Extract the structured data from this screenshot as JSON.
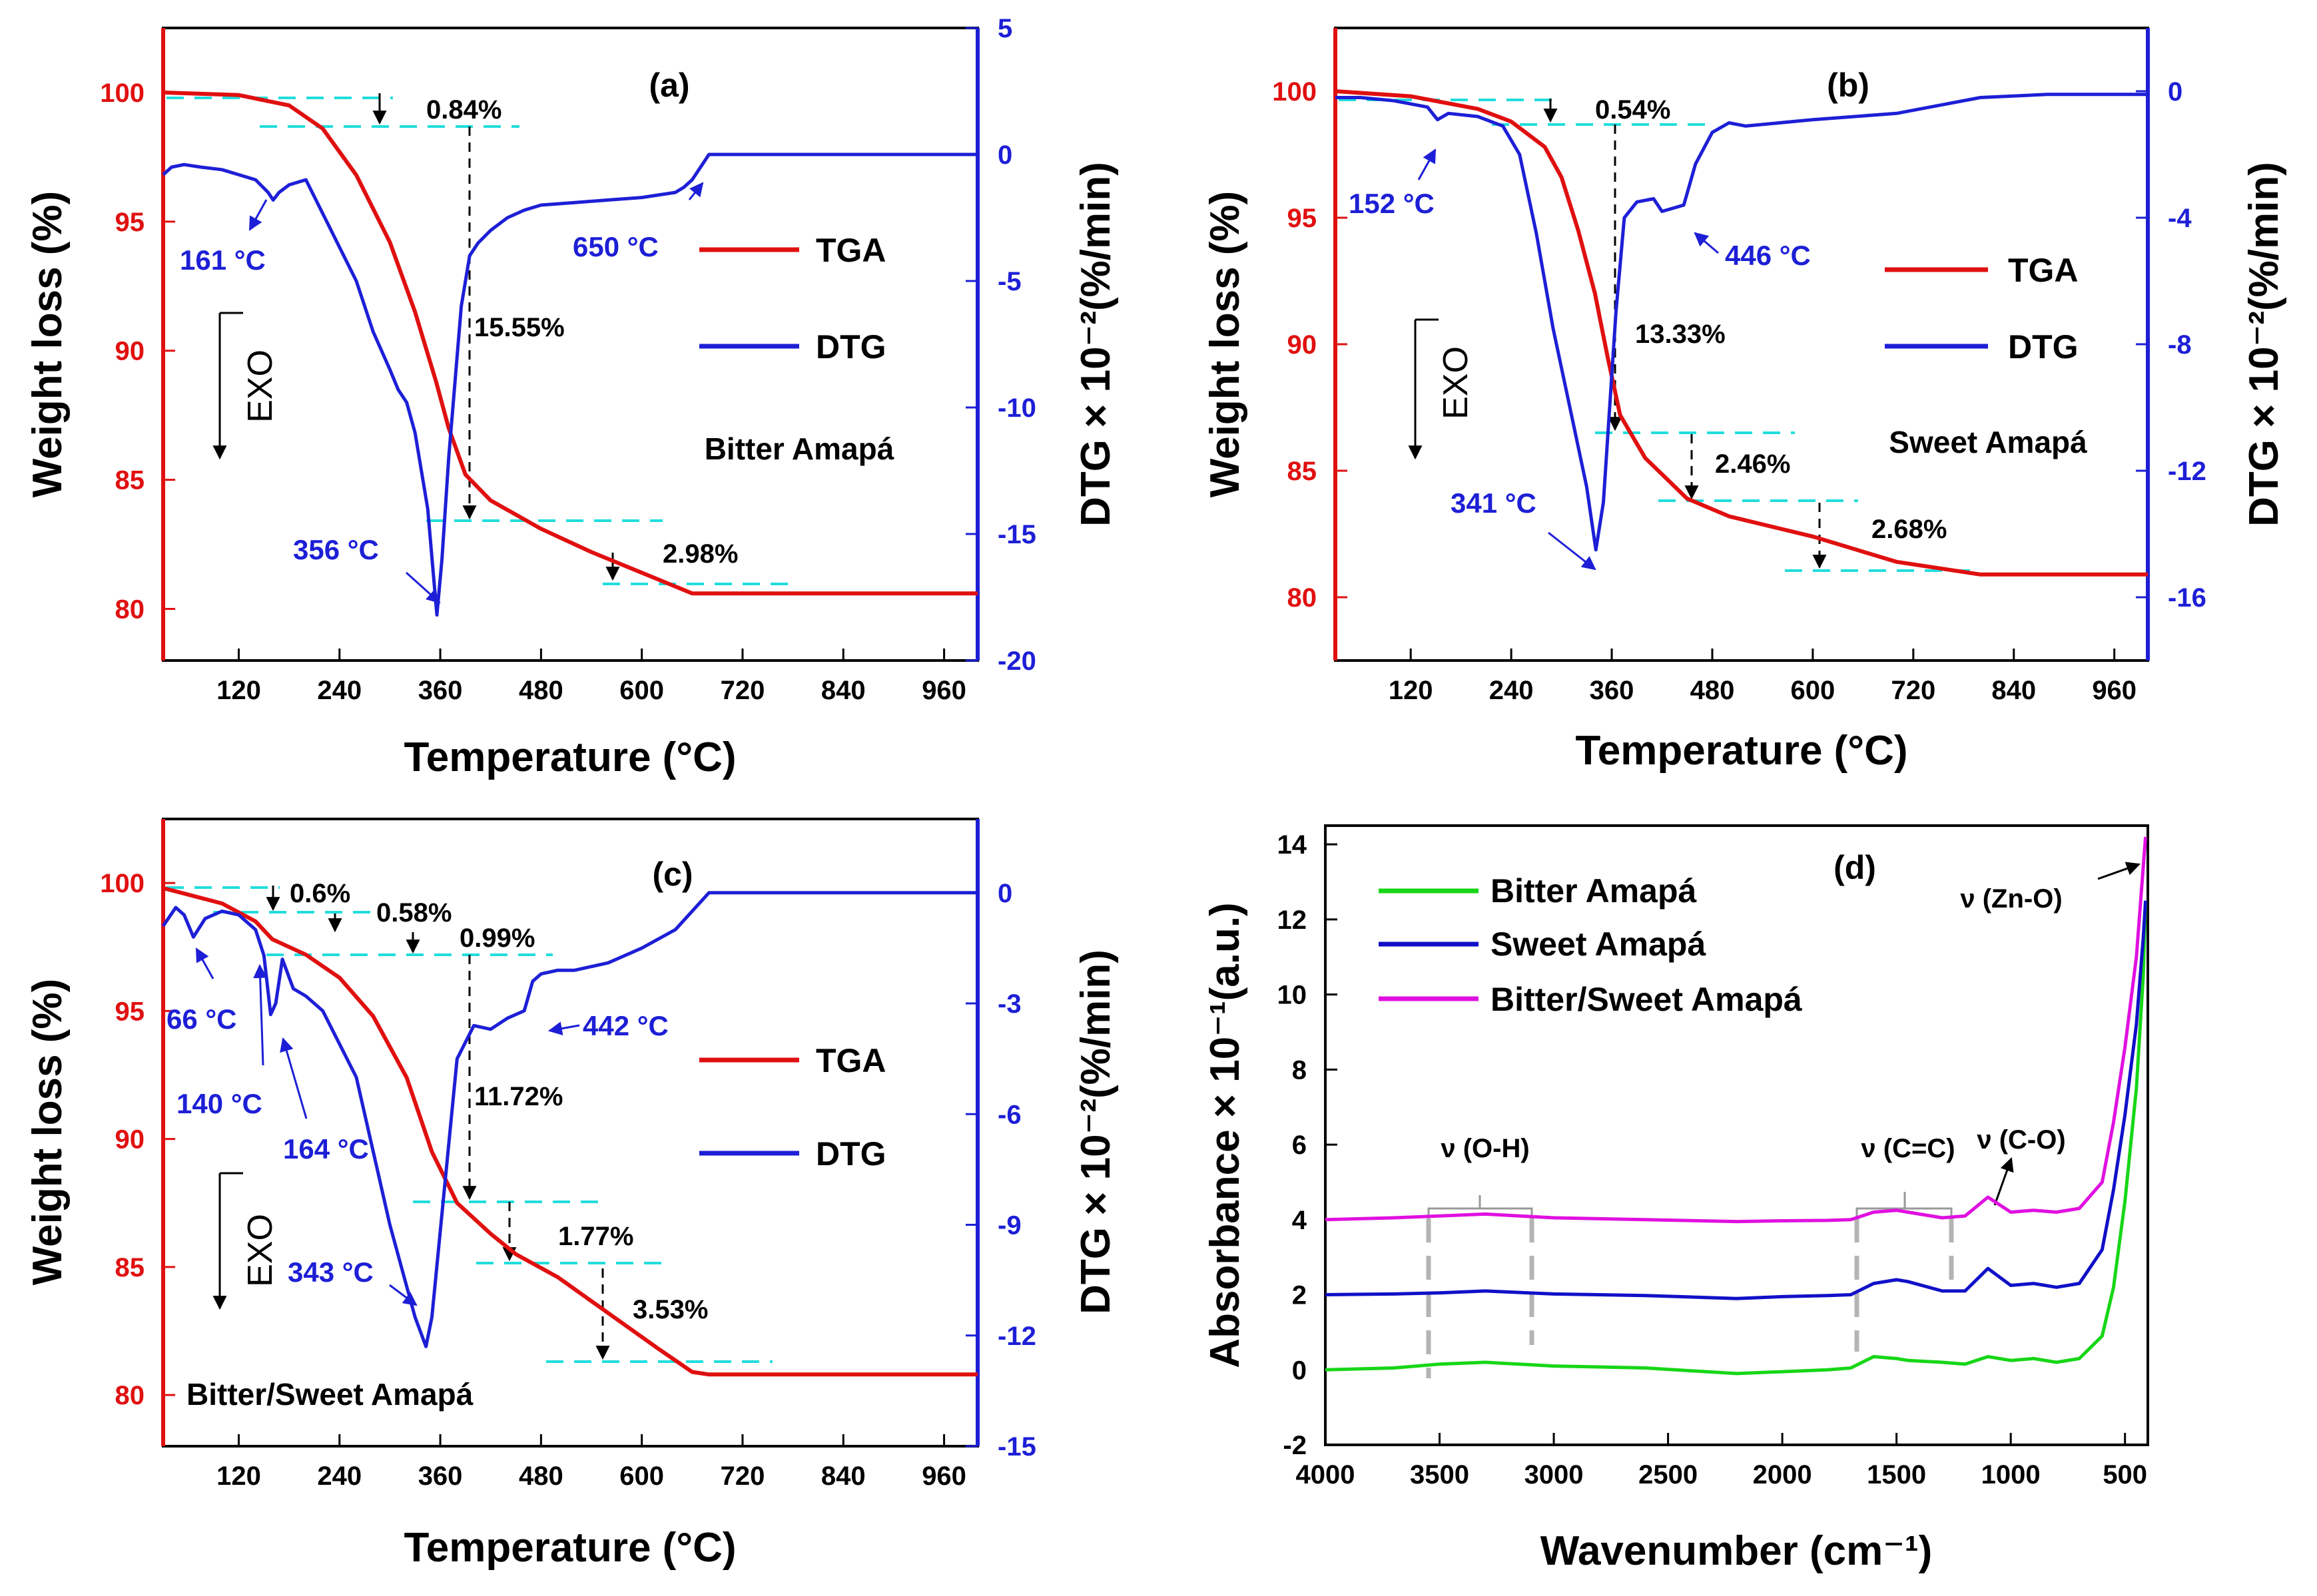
{
  "colors": {
    "tga": "#e01010",
    "dtg": "#1d1fd6",
    "guide": "#22dddd",
    "bitter": "#17d617",
    "sweet": "#1010c8",
    "mix": "#e010e0",
    "bracket": "#b4b4b4"
  },
  "legend_tga": "TGA",
  "legend_dtg": "DTG",
  "exo_label": "EXO",
  "chart_data": [
    {
      "panel": "(a)",
      "type": "line",
      "sample": "Bitter Amapá",
      "xlabel": "Temperature (°C)",
      "ylabel": "Weight loss (%)",
      "y2label": "DTG × 10⁻²(%/min)",
      "xlim": [
        30,
        1000
      ],
      "ylim": [
        78,
        102.5
      ],
      "y2lim": [
        -20,
        5
      ],
      "xticks": [
        "120",
        "240",
        "360",
        "480",
        "600",
        "720",
        "840",
        "960"
      ],
      "yticks": [
        "80",
        "85",
        "90",
        "95",
        "100"
      ],
      "y2ticks": [
        "5",
        "0",
        "-5",
        "-10",
        "-15",
        "-20"
      ],
      "series": [
        {
          "name": "TGA",
          "x": [
            30,
            120,
            180,
            220,
            260,
            300,
            330,
            355,
            370,
            390,
            420,
            480,
            540,
            600,
            660,
            680,
            1000
          ],
          "y": [
            100,
            99.9,
            99.5,
            98.6,
            96.8,
            94.2,
            91.5,
            88.8,
            87,
            85.2,
            84.2,
            83.1,
            82.2,
            81.4,
            80.6,
            80.6,
            80.6
          ]
        },
        {
          "name": "DTG",
          "x": [
            30,
            40,
            55,
            75,
            100,
            120,
            140,
            155,
            161,
            168,
            180,
            200,
            230,
            260,
            280,
            300,
            310,
            320,
            330,
            345,
            356,
            362,
            370,
            385,
            395,
            405,
            420,
            440,
            460,
            480,
            520,
            560,
            600,
            640,
            650,
            660,
            680,
            720,
            800,
            900,
            1000
          ],
          "y": [
            -0.8,
            -0.5,
            -0.4,
            -0.5,
            -0.6,
            -0.8,
            -1.0,
            -1.5,
            -1.8,
            -1.5,
            -1.2,
            -1.0,
            -3.0,
            -5.0,
            -7.0,
            -8.5,
            -9.3,
            -9.8,
            -11.0,
            -14.0,
            -18.2,
            -16.0,
            -12.0,
            -6.0,
            -4.0,
            -3.5,
            -3.0,
            -2.5,
            -2.2,
            -2.0,
            -1.9,
            -1.8,
            -1.7,
            -1.5,
            -1.3,
            -1.0,
            0.0,
            0.0,
            0.0,
            0.0,
            0.0
          ]
        }
      ],
      "annotations": [
        "161 °C",
        "650 °C",
        "356 °C",
        "0.84%",
        "15.55%",
        "2.98%"
      ]
    },
    {
      "panel": "(b)",
      "type": "line",
      "sample": "Sweet Amapá",
      "xlabel": "Temperature (°C)",
      "ylabel": "Weight loss (%)",
      "y2label": "DTG × 10⁻²(%/min)",
      "xlim": [
        30,
        1000
      ],
      "ylim": [
        77.5,
        102.5
      ],
      "y2lim": [
        -18,
        2
      ],
      "xticks": [
        "120",
        "240",
        "360",
        "480",
        "600",
        "720",
        "840",
        "960"
      ],
      "yticks": [
        "80",
        "85",
        "90",
        "95",
        "100"
      ],
      "y2ticks": [
        "0",
        "-4",
        "-8",
        "-12",
        "-16"
      ],
      "series": [
        {
          "name": "TGA",
          "x": [
            30,
            120,
            200,
            240,
            280,
            300,
            320,
            340,
            355,
            370,
            400,
            450,
            500,
            600,
            700,
            800,
            1000
          ],
          "y": [
            100,
            99.8,
            99.3,
            98.8,
            97.8,
            96.6,
            94.5,
            92,
            89.5,
            87.2,
            85.5,
            83.9,
            83.2,
            82.4,
            81.4,
            80.9,
            80.9
          ]
        },
        {
          "name": "DTG",
          "x": [
            30,
            60,
            100,
            140,
            152,
            165,
            200,
            230,
            250,
            270,
            290,
            310,
            330,
            341,
            350,
            365,
            375,
            390,
            410,
            420,
            446,
            460,
            480,
            500,
            520,
            600,
            700,
            800,
            880,
            1000
          ],
          "y": [
            -0.2,
            -0.2,
            -0.3,
            -0.5,
            -0.9,
            -0.7,
            -0.8,
            -1.1,
            -2.0,
            -4.5,
            -7.5,
            -10.0,
            -12.5,
            -14.5,
            -13.0,
            -7.0,
            -4.0,
            -3.5,
            -3.4,
            -3.8,
            -3.6,
            -2.3,
            -1.3,
            -1.0,
            -1.1,
            -0.9,
            -0.7,
            -0.2,
            -0.1,
            -0.1
          ]
        }
      ],
      "annotations": [
        "152 °C",
        "446 °C",
        "341 °C",
        "0.54%",
        "13.33%",
        "2.46%",
        "2.68%"
      ]
    },
    {
      "panel": "(c)",
      "type": "line",
      "sample": "Bitter/Sweet Amapá",
      "xlabel": "Temperature (°C)",
      "ylabel": "Weight loss (%)",
      "y2label": "DTG × 10⁻²(%/min)",
      "xlim": [
        30,
        1000
      ],
      "ylim": [
        78,
        102.5
      ],
      "y2lim": [
        -15,
        2
      ],
      "xticks": [
        "120",
        "240",
        "360",
        "480",
        "600",
        "720",
        "840",
        "960"
      ],
      "yticks": [
        "80",
        "85",
        "90",
        "95",
        "100"
      ],
      "y2ticks": [
        "0",
        "-3",
        "-6",
        "-9",
        "-12",
        "-15"
      ],
      "series": [
        {
          "name": "TGA",
          "x": [
            30,
            100,
            140,
            160,
            200,
            240,
            280,
            320,
            350,
            380,
            420,
            450,
            500,
            560,
            620,
            660,
            680,
            1000
          ],
          "y": [
            99.8,
            99.2,
            98.5,
            97.8,
            97.2,
            96.3,
            94.8,
            92.4,
            89.5,
            87.5,
            86.3,
            85.5,
            84.6,
            83.2,
            81.8,
            80.9,
            80.8,
            80.8
          ]
        },
        {
          "name": "DTG",
          "x": [
            30,
            45,
            55,
            66,
            80,
            100,
            120,
            140,
            150,
            158,
            164,
            172,
            185,
            200,
            220,
            260,
            300,
            330,
            343,
            350,
            365,
            380,
            400,
            420,
            440,
            460,
            470,
            480,
            500,
            520,
            560,
            600,
            640,
            680,
            720,
            1000
          ],
          "y": [
            -0.9,
            -0.4,
            -0.6,
            -1.2,
            -0.7,
            -0.5,
            -0.6,
            -1.0,
            -1.7,
            -3.3,
            -3.0,
            -1.8,
            -2.6,
            -2.8,
            -3.2,
            -5.0,
            -9.0,
            -11.5,
            -12.3,
            -11.5,
            -8.0,
            -4.5,
            -3.6,
            -3.7,
            -3.4,
            -3.2,
            -2.4,
            -2.2,
            -2.1,
            -2.1,
            -1.9,
            -1.5,
            -1.0,
            0.0,
            0.0,
            0.0
          ]
        }
      ],
      "annotations": [
        "66 °C",
        "140 °C",
        "164 °C",
        "442 °C",
        "343 °C",
        "0.6%",
        "0.58%",
        "0.99%",
        "11.72%",
        "1.77%",
        "3.53%"
      ]
    },
    {
      "panel": "(d)",
      "type": "line",
      "xlabel": "Wavenumber (cm⁻¹)",
      "ylabel": "Absorbance × 10⁻¹(a.u.)",
      "xlim": [
        4000,
        400
      ],
      "ylim": [
        -2,
        14.5
      ],
      "x_reversed": true,
      "xticks": [
        "4000",
        "3500",
        "3000",
        "2500",
        "2000",
        "1500",
        "1000",
        "500"
      ],
      "yticks": [
        "-2",
        "0",
        "2",
        "4",
        "6",
        "8",
        "10",
        "12",
        "14"
      ],
      "series": [
        {
          "name": "Bitter Amapá",
          "x": [
            4000,
            3700,
            3500,
            3300,
            3000,
            2600,
            2200,
            2000,
            1800,
            1700,
            1600,
            1500,
            1450,
            1300,
            1200,
            1100,
            1000,
            900,
            800,
            700,
            600,
            550,
            500,
            450,
            420,
            410
          ],
          "y": [
            0,
            0.05,
            0.15,
            0.2,
            0.1,
            0.05,
            -0.1,
            -0.05,
            0,
            0.05,
            0.35,
            0.3,
            0.25,
            0.2,
            0.15,
            0.35,
            0.25,
            0.3,
            0.2,
            0.3,
            0.9,
            2.2,
            4.5,
            7.5,
            10.5,
            12.5
          ]
        },
        {
          "name": "Sweet Amapá",
          "x": [
            4000,
            3700,
            3500,
            3300,
            3000,
            2600,
            2200,
            2000,
            1800,
            1700,
            1600,
            1500,
            1450,
            1300,
            1200,
            1100,
            1000,
            900,
            800,
            700,
            600,
            550,
            500,
            450,
            420,
            410
          ],
          "y": [
            2,
            2.02,
            2.05,
            2.1,
            2.02,
            1.98,
            1.9,
            1.95,
            1.98,
            2.0,
            2.3,
            2.4,
            2.35,
            2.1,
            2.1,
            2.7,
            2.25,
            2.3,
            2.2,
            2.3,
            3.2,
            4.8,
            6.8,
            9.2,
            11.5,
            12.5
          ]
        },
        {
          "name": "Bitter/Sweet Amapá",
          "x": [
            4000,
            3700,
            3500,
            3300,
            3000,
            2600,
            2200,
            2000,
            1800,
            1700,
            1600,
            1500,
            1450,
            1300,
            1200,
            1100,
            1000,
            900,
            800,
            700,
            600,
            550,
            500,
            450,
            420,
            410
          ],
          "y": [
            4,
            4.05,
            4.1,
            4.15,
            4.05,
            4.0,
            3.95,
            3.97,
            3.98,
            4.0,
            4.2,
            4.25,
            4.2,
            4.05,
            4.1,
            4.6,
            4.2,
            4.25,
            4.2,
            4.3,
            5.0,
            6.6,
            8.6,
            11.0,
            13.4,
            14.2
          ]
        }
      ],
      "annotations": [
        "ν (O-H)",
        "ν (C=C)",
        "ν (C-O)",
        "ν (Zn-O)"
      ]
    }
  ]
}
